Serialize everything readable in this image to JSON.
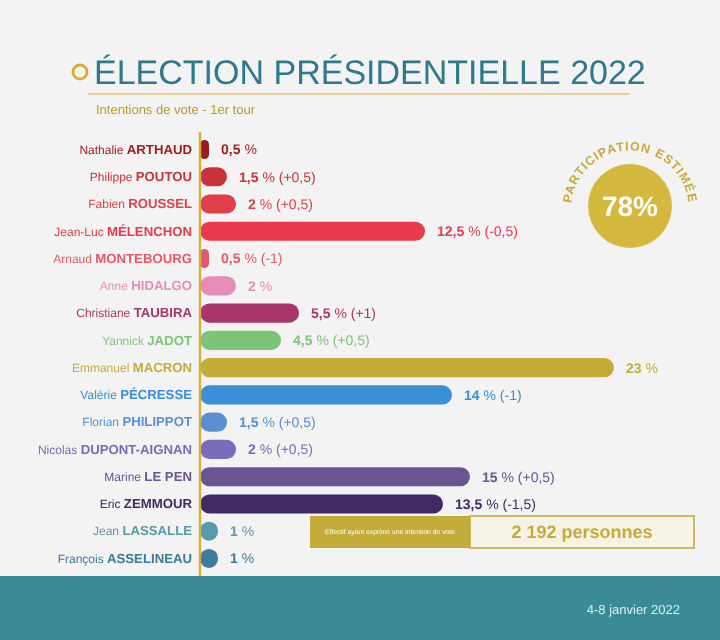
{
  "chart_data": {
    "type": "bar",
    "orientation": "horizontal",
    "title": "ÉLECTION PRÉSIDENTIELLE 2022",
    "subtitle": "Intentions de vote - 1er tour",
    "categories": [
      "Nathalie ARTHAUD",
      "Philippe POUTOU",
      "Fabien ROUSSEL",
      "Jean-Luc MÉLENCHON",
      "Arnaud MONTEBOURG",
      "Anne HIDALGO",
      "Christiane TAUBIRA",
      "Yannick JADOT",
      "Emmanuel MACRON",
      "Valérie PÉCRESSE",
      "Florian PHILIPPOT",
      "Nicolas DUPONT-AIGNAN",
      "Marine LE PEN",
      "Eric ZEMMOUR",
      "Jean LASSALLE",
      "François ASSELINEAU"
    ],
    "values": [
      0.5,
      1.5,
      2,
      12.5,
      0.5,
      2,
      5.5,
      4.5,
      23,
      14,
      1.5,
      2,
      15,
      13.5,
      1,
      1
    ],
    "colors": [
      "#9e1b1b",
      "#c8323a",
      "#e0404a",
      "#e83a4a",
      "#e25a6a",
      "#e58cb8",
      "#a8366a",
      "#7cc576",
      "#c4ac3a",
      "#3a8fd6",
      "#5b8fd0",
      "#7a6bb8",
      "#6a5590",
      "#3f2a63",
      "#5a9aa8",
      "#3f7a98"
    ],
    "value_labels": [
      "0,5 %",
      "1,5 % (+0,5)",
      "2 % (+0,5)",
      "12,5 % (-0,5)",
      "0,5 % (-1)",
      "2 %",
      "5,5 % (+1)",
      "4,5 % (+0,5)",
      "23 %",
      "14 % (-1)",
      "1,5 % (+0,5)",
      "2 % (+0,5)",
      "15 % (+0,5)",
      "13,5 % (-1,5)",
      "1 %",
      "1 %"
    ],
    "annotations": [
      "PARTICIPATION ESTIMÉE",
      "78%",
      "Effectif ayant exprimé une intention de vote",
      "2 192 personnes",
      "4-8 janvier 2022"
    ]
  }
}
